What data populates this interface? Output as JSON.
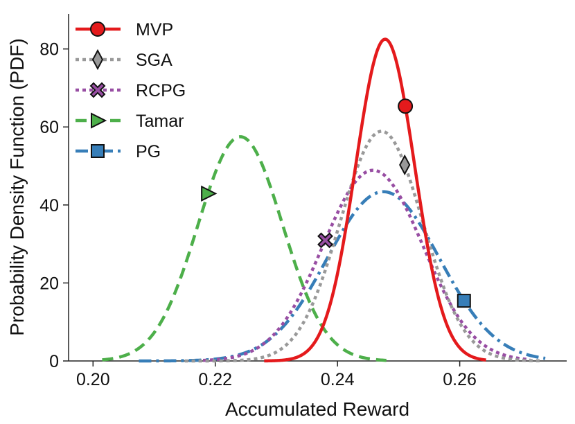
{
  "chart_data": {
    "type": "line",
    "title": "",
    "xlabel": "Accumulated Reward",
    "ylabel": "Probability Density Function (PDF)",
    "xlim": [
      0.196,
      0.2775
    ],
    "ylim": [
      0,
      89
    ],
    "xticks": [
      0.2,
      0.22,
      0.24,
      0.26
    ],
    "xtick_labels": [
      "0.20",
      "0.22",
      "0.24",
      "0.26"
    ],
    "yticks": [
      0,
      20,
      40,
      60,
      80
    ],
    "ytick_labels": [
      "0",
      "20",
      "40",
      "60",
      "80"
    ],
    "grid": false,
    "legend_position": "top-left",
    "series": [
      {
        "name": "MVP",
        "color": "#e41a1c",
        "dash": "solid",
        "marker": "circle",
        "mu": 0.2478,
        "sigma": 0.00483,
        "peak": 82.5,
        "x_range": [
          0.228,
          0.2643
        ],
        "marker_x": 0.2511
      },
      {
        "name": "SGA",
        "color": "#999999",
        "dash": "dotted",
        "marker": "diamond",
        "mu": 0.2472,
        "sigma": 0.00675,
        "peak": 58.9,
        "x_range": [
          0.215,
          0.2735
        ],
        "marker_x": 0.251
      },
      {
        "name": "RCPG",
        "color": "#984ea3",
        "dash": "dotted",
        "marker": "cross",
        "mu": 0.2458,
        "sigma": 0.00815,
        "peak": 48.9,
        "x_range": [
          0.218,
          0.2715
        ],
        "marker_x": 0.238
      },
      {
        "name": "Tamar",
        "color": "#4daf4a",
        "dash": "dashed",
        "marker": "triangle",
        "mu": 0.2241,
        "sigma": 0.00693,
        "peak": 57.5,
        "x_range": [
          0.2015,
          0.248
        ],
        "marker_x": 0.2188
      },
      {
        "name": "PG",
        "color": "#377eb8",
        "dash": "dashdot",
        "marker": "square",
        "mu": 0.2475,
        "sigma": 0.00918,
        "peak": 43.4,
        "x_range": [
          0.2075,
          0.274
        ],
        "marker_x": 0.2607
      }
    ]
  }
}
